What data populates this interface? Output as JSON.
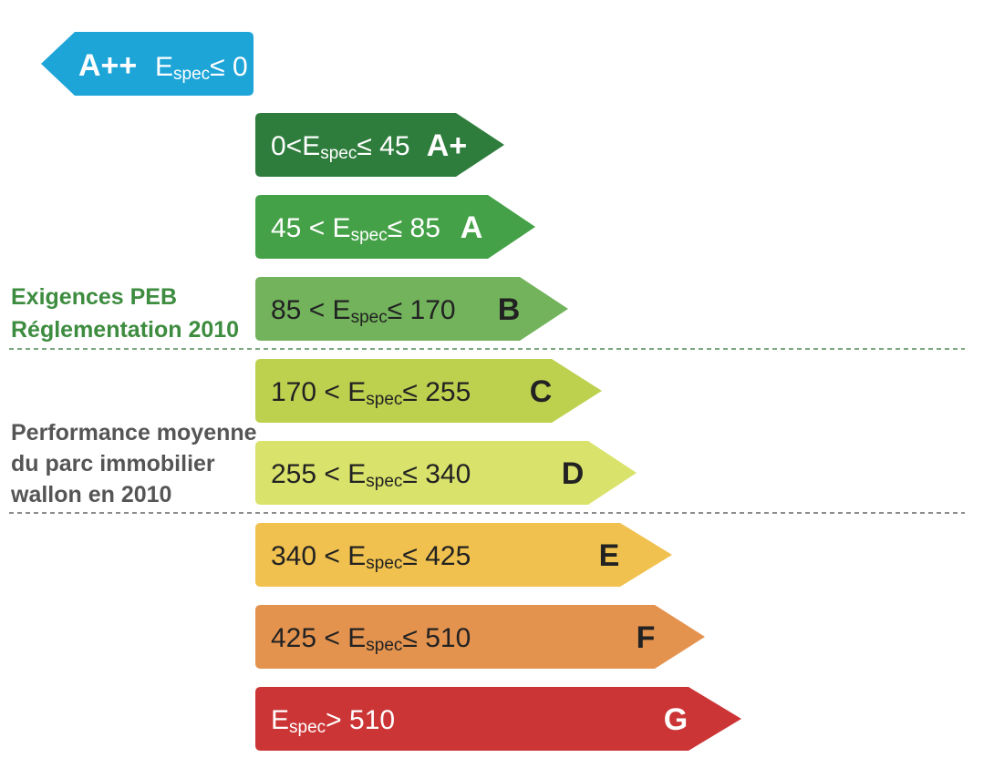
{
  "classes": [
    {
      "grade": "A++",
      "range_before": "E",
      "range_sub": "spec",
      "range_after": "≤ 0"
    },
    {
      "grade": "A+",
      "range_before": "0<E",
      "range_sub": "spec",
      "range_after": "≤ 45"
    },
    {
      "grade": "A",
      "range_before": "45 < E",
      "range_sub": "spec",
      "range_after": "≤ 85"
    },
    {
      "grade": "B",
      "range_before": "85 < E",
      "range_sub": "spec",
      "range_after": "≤ 170"
    },
    {
      "grade": "C",
      "range_before": "170 < E",
      "range_sub": "spec",
      "range_after": "≤ 255"
    },
    {
      "grade": "D",
      "range_before": "255 < E",
      "range_sub": "spec",
      "range_after": "≤ 340"
    },
    {
      "grade": "E",
      "range_before": "340 < E",
      "range_sub": "spec",
      "range_after": "≤ 425"
    },
    {
      "grade": "F",
      "range_before": "425 < E",
      "range_sub": "spec",
      "range_after": "≤ 510"
    },
    {
      "grade": "G",
      "range_before": "E",
      "range_sub": "spec",
      "range_after": "> 510"
    }
  ],
  "annotations": {
    "requirements": [
      "Exigences PEB",
      "Réglementation 2010"
    ],
    "average": [
      "Performance moyenne",
      "du parc immobilier",
      "wallon en 2010"
    ]
  }
}
